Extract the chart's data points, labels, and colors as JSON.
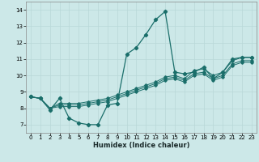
{
  "xlabel": "Humidex (Indice chaleur)",
  "xlim": [
    -0.5,
    23.5
  ],
  "ylim": [
    6.5,
    14.5
  ],
  "xticks": [
    0,
    1,
    2,
    3,
    4,
    5,
    6,
    7,
    8,
    9,
    10,
    11,
    12,
    13,
    14,
    15,
    16,
    17,
    18,
    19,
    20,
    21,
    22,
    23
  ],
  "yticks": [
    7,
    8,
    9,
    10,
    11,
    12,
    13,
    14
  ],
  "background_color": "#cce8e8",
  "grid_color": "#b8d8d8",
  "line_color": "#1a6e6a",
  "line1_x": [
    0,
    1,
    2,
    3,
    4,
    5,
    6,
    7,
    8,
    9,
    10,
    11,
    12,
    13,
    14,
    15,
    16,
    17,
    18,
    19,
    20,
    21,
    22,
    23
  ],
  "line1_y": [
    8.7,
    8.6,
    7.9,
    8.6,
    7.4,
    7.1,
    7.0,
    7.0,
    8.2,
    8.3,
    11.3,
    11.7,
    12.5,
    13.4,
    13.9,
    10.2,
    10.1,
    10.2,
    10.5,
    9.8,
    10.2,
    11.0,
    11.1,
    11.1
  ],
  "line2_x": [
    0,
    1,
    2,
    3,
    4,
    5,
    6,
    7,
    8,
    9,
    10,
    11,
    12,
    13,
    14,
    15,
    16,
    17,
    18,
    19,
    20,
    21,
    22,
    23
  ],
  "line2_y": [
    8.7,
    8.6,
    8.0,
    8.3,
    8.3,
    8.3,
    8.4,
    8.5,
    8.6,
    8.8,
    9.0,
    9.2,
    9.4,
    9.6,
    9.9,
    10.0,
    9.8,
    10.3,
    10.4,
    10.0,
    10.2,
    10.9,
    11.1,
    11.1
  ],
  "line3_x": [
    0,
    1,
    2,
    3,
    4,
    5,
    6,
    7,
    8,
    9,
    10,
    11,
    12,
    13,
    14,
    15,
    16,
    17,
    18,
    19,
    20,
    21,
    22,
    23
  ],
  "line3_y": [
    8.7,
    8.6,
    8.0,
    8.2,
    8.2,
    8.2,
    8.3,
    8.4,
    8.5,
    8.7,
    8.9,
    9.1,
    9.3,
    9.5,
    9.8,
    9.9,
    9.7,
    10.1,
    10.2,
    9.8,
    10.0,
    10.7,
    10.9,
    10.9
  ],
  "line4_x": [
    0,
    1,
    2,
    3,
    4,
    5,
    6,
    7,
    8,
    9,
    10,
    11,
    12,
    13,
    14,
    15,
    16,
    17,
    18,
    19,
    20,
    21,
    22,
    23
  ],
  "line4_y": [
    8.7,
    8.6,
    8.0,
    8.1,
    8.1,
    8.1,
    8.2,
    8.3,
    8.4,
    8.6,
    8.8,
    9.0,
    9.2,
    9.4,
    9.7,
    9.8,
    9.6,
    10.0,
    10.1,
    9.7,
    9.9,
    10.6,
    10.8,
    10.8
  ]
}
